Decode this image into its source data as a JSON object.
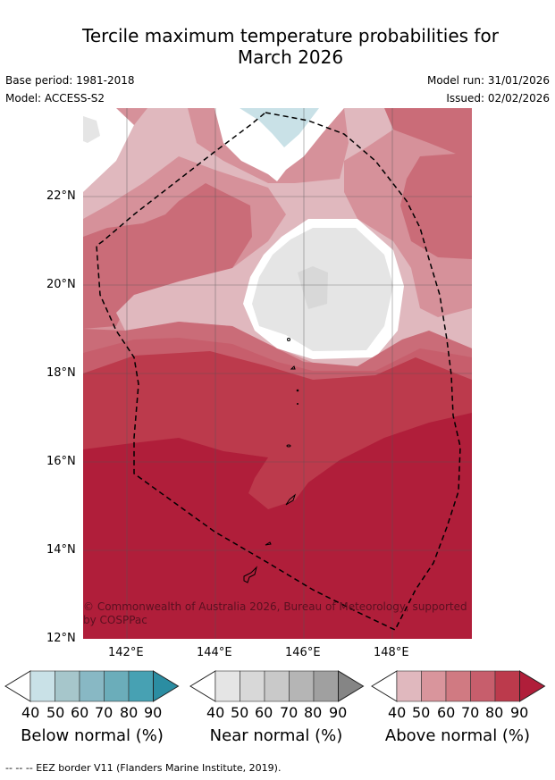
{
  "title_line1": "Tercile maximum temperature probabilities for",
  "title_line2": "March 2026",
  "base_period": "Base period: 1981-2018",
  "model": "Model: ACCESS-S2",
  "model_run": "Model run: 31/01/2026",
  "issued": "Issued: 02/02/2026",
  "lat_labels": [
    "22°N",
    "20°N",
    "18°N",
    "16°N",
    "14°N",
    "12°N"
  ],
  "lon_labels": [
    "142°E",
    "144°E",
    "146°E",
    "148°E"
  ],
  "copyright": "© Commonwealth of Australia 2026, Bureau of Meteorology, supported by COSPPac",
  "colorbars": [
    {
      "label": "Below normal (%)",
      "ticks": [
        "40",
        "50",
        "60",
        "70",
        "80",
        "90"
      ],
      "colors": [
        "#c9e1e7",
        "#a6c6cb",
        "#88b8c4",
        "#6badba",
        "#47a1b3",
        "#2b8da2"
      ]
    },
    {
      "label": "Near normal (%)",
      "ticks": [
        "40",
        "50",
        "60",
        "70",
        "80",
        "90"
      ],
      "colors": [
        "#e5e5e5",
        "#d8d8d8",
        "#c9c9c9",
        "#b5b5b5",
        "#a0a0a0",
        "#858585"
      ]
    },
    {
      "label": "Above normal (%)",
      "ticks": [
        "40",
        "50",
        "60",
        "70",
        "80",
        "90"
      ],
      "colors": [
        "#e0b8be",
        "#d9959c",
        "#d07a82",
        "#c75e6c",
        "#bc3a4c",
        "#b01e3a"
      ]
    }
  ],
  "footnote": "--  --  -- EEZ border V11 (Flanders Marine Institute, 2019)."
}
